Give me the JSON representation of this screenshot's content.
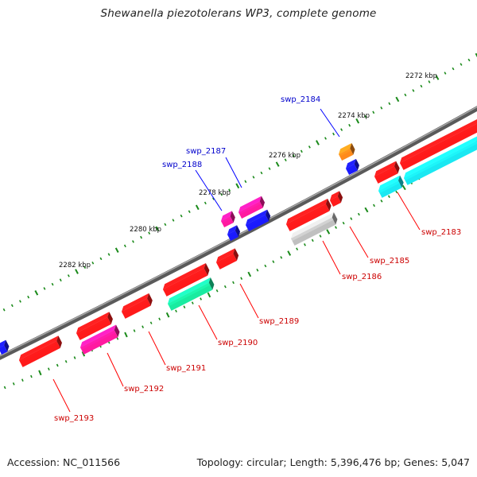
{
  "title": "Shewanella piezotolerans WP3, complete genome",
  "footer": {
    "accession": "Accession: NC_011566",
    "summary": "Topology: circular; Length: 5,396,476 bp; Genes: 5,047"
  },
  "colors": {
    "backbone": "#7a7a7a",
    "tick": "#1a8a1a",
    "label_forward": "#0000cc",
    "label_reverse": "#cc0000",
    "leader_forward": "#0000ff",
    "leader_reverse": "#ff0000"
  },
  "map": {
    "kbp_labels": [
      "2272 kbp",
      "2274 kbp",
      "2276 kbp",
      "2278 kbp",
      "2280 kbp",
      "2282 kbp"
    ],
    "gene_labels": [
      {
        "name": "swp_2184",
        "strand": "forward"
      },
      {
        "name": "swp_2187",
        "strand": "forward"
      },
      {
        "name": "swp_2188",
        "strand": "forward"
      },
      {
        "name": "swp_2183",
        "strand": "reverse"
      },
      {
        "name": "swp_2185",
        "strand": "reverse"
      },
      {
        "name": "swp_2186",
        "strand": "reverse"
      },
      {
        "name": "swp_2189",
        "strand": "reverse"
      },
      {
        "name": "swp_2190",
        "strand": "reverse"
      },
      {
        "name": "swp_2191",
        "strand": "reverse"
      },
      {
        "name": "swp_2192",
        "strand": "reverse"
      },
      {
        "name": "swp_2193",
        "strand": "reverse"
      }
    ]
  }
}
